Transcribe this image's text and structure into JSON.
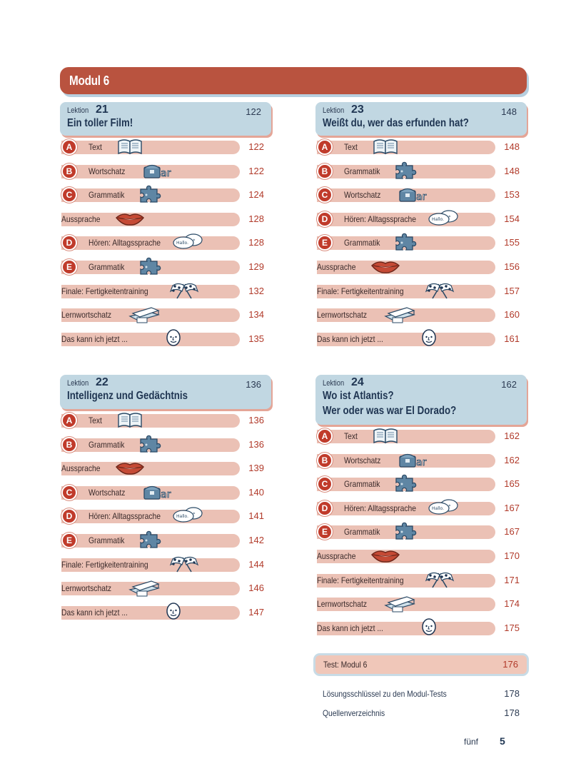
{
  "module": {
    "title": "Modul 6"
  },
  "lessons": [
    {
      "label": "Lektion",
      "number": "21",
      "page": "122",
      "title": [
        "Ein toller Film!"
      ],
      "items": [
        {
          "letter": "A",
          "text": "Text",
          "icon": "book-icon",
          "page": "122"
        },
        {
          "letter": "B",
          "text": "Wortschatz",
          "icon": "word-chest-icon",
          "page": "122"
        },
        {
          "letter": "C",
          "text": "Grammatik",
          "icon": "puzzle-icon",
          "page": "124"
        },
        {
          "letter": "",
          "text": "Aussprache",
          "icon": "lips-icon",
          "page": "128"
        },
        {
          "letter": "D",
          "text": "Hören: Alltagssprache",
          "icon": "speech-bubble-icon",
          "page": "128"
        },
        {
          "letter": "E",
          "text": "Grammatik",
          "icon": "puzzle-icon",
          "page": "129"
        },
        {
          "letter": "",
          "text": "Finale: Fertigkeitentraining",
          "icon": "checkered-flags-icon",
          "page": "132"
        },
        {
          "letter": "",
          "text": "Lernwortschatz",
          "icon": "card-box-icon",
          "page": "134"
        },
        {
          "letter": "",
          "text": "Das kann ich jetzt ...",
          "icon": "face-icon",
          "page": "135"
        }
      ]
    },
    {
      "label": "Lektion",
      "number": "22",
      "page": "136",
      "title": [
        "Intelligenz und Gedächtnis"
      ],
      "items": [
        {
          "letter": "A",
          "text": "Text",
          "icon": "book-icon",
          "page": "136"
        },
        {
          "letter": "B",
          "text": "Grammatik",
          "icon": "puzzle-icon",
          "page": "136"
        },
        {
          "letter": "",
          "text": "Aussprache",
          "icon": "lips-icon",
          "page": "139"
        },
        {
          "letter": "C",
          "text": "Wortschatz",
          "icon": "word-chest-icon",
          "page": "140"
        },
        {
          "letter": "D",
          "text": "Hören: Alltagssprache",
          "icon": "speech-bubble-icon",
          "page": "141"
        },
        {
          "letter": "E",
          "text": "Grammatik",
          "icon": "puzzle-icon",
          "page": "142"
        },
        {
          "letter": "",
          "text": "Finale: Fertigkeitentraining",
          "icon": "checkered-flags-icon",
          "page": "144"
        },
        {
          "letter": "",
          "text": "Lernwortschatz",
          "icon": "card-box-icon",
          "page": "146"
        },
        {
          "letter": "",
          "text": "Das kann ich jetzt ...",
          "icon": "face-icon",
          "page": "147"
        }
      ]
    },
    {
      "label": "Lektion",
      "number": "23",
      "page": "148",
      "title": [
        "Weißt du, wer das erfunden hat?"
      ],
      "items": [
        {
          "letter": "A",
          "text": "Text",
          "icon": "book-icon",
          "page": "148"
        },
        {
          "letter": "B",
          "text": "Grammatik",
          "icon": "puzzle-icon",
          "page": "148"
        },
        {
          "letter": "C",
          "text": "Wortschatz",
          "icon": "word-chest-icon",
          "page": "153"
        },
        {
          "letter": "D",
          "text": "Hören: Alltagssprache",
          "icon": "speech-bubble-icon",
          "page": "154"
        },
        {
          "letter": "E",
          "text": "Grammatik",
          "icon": "puzzle-icon",
          "page": "155"
        },
        {
          "letter": "",
          "text": "Aussprache",
          "icon": "lips-icon",
          "page": "156"
        },
        {
          "letter": "",
          "text": "Finale: Fertigkeitentraining",
          "icon": "checkered-flags-icon",
          "page": "157"
        },
        {
          "letter": "",
          "text": "Lernwortschatz",
          "icon": "card-box-icon",
          "page": "160"
        },
        {
          "letter": "",
          "text": "Das kann ich jetzt ...",
          "icon": "face-icon",
          "page": "161"
        }
      ]
    },
    {
      "label": "Lektion",
      "number": "24",
      "page": "162",
      "title": [
        "Wo ist Atlantis?",
        "Wer oder was war El Dorado?"
      ],
      "items": [
        {
          "letter": "A",
          "text": "Text",
          "icon": "book-icon",
          "page": "162"
        },
        {
          "letter": "B",
          "text": "Wortschatz",
          "icon": "word-chest-icon",
          "page": "162"
        },
        {
          "letter": "C",
          "text": "Grammatik",
          "icon": "puzzle-icon",
          "page": "165"
        },
        {
          "letter": "D",
          "text": "Hören: Alltagssprache",
          "icon": "speech-bubble-icon",
          "page": "167"
        },
        {
          "letter": "E",
          "text": "Grammatik",
          "icon": "puzzle-icon",
          "page": "167"
        },
        {
          "letter": "",
          "text": "Aussprache",
          "icon": "lips-icon",
          "page": "170"
        },
        {
          "letter": "",
          "text": "Finale: Fertigkeitentraining",
          "icon": "checkered-flags-icon",
          "page": "171"
        },
        {
          "letter": "",
          "text": "Lernwortschatz",
          "icon": "card-box-icon",
          "page": "174"
        },
        {
          "letter": "",
          "text": "Das kann ich jetzt ...",
          "icon": "face-icon",
          "page": "175"
        }
      ]
    }
  ],
  "test": {
    "label": "Test: Modul 6",
    "page": "176"
  },
  "extras": [
    {
      "label": "Lösungsschlüssel zu den Modul-Tests",
      "page": "178"
    },
    {
      "label": "Quellenverzeichnis",
      "page": "178"
    }
  ],
  "speech_bubble_text": "Hallo.",
  "footer": {
    "word": "fünf",
    "page": "5"
  },
  "colors": {
    "module_bar": "#b9533f",
    "lesson_head": "#c1d7e2",
    "row_band": "#ebc1b5",
    "letter_circle": "#c03b2b",
    "page_number": "#b13a2a"
  }
}
